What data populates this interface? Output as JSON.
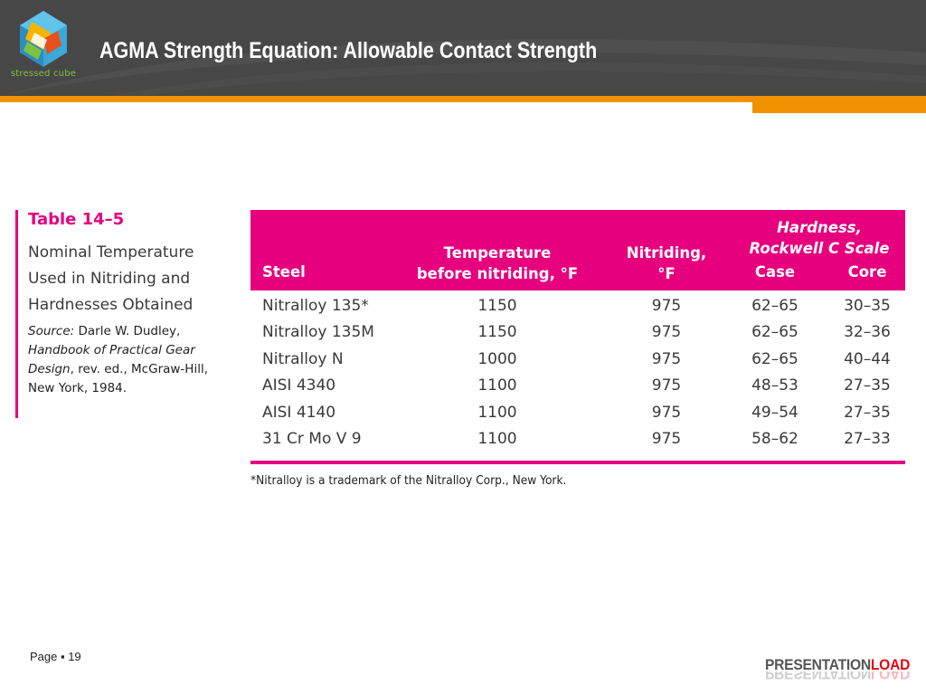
{
  "header": {
    "title": "AGMA Strength Equation: Allowable Contact Strength",
    "logo_text": "stressed cube"
  },
  "caption": {
    "table_label": "Table 14–5",
    "description": "Nominal Temperature Used in Nitriding and Hardnesses Obtained",
    "source_prefix": "Source:",
    "source_author": " Darle W. Dudley,",
    "source_book": "Handbook of Practical Gear Design",
    "source_rest": ", rev. ed., McGraw-Hill, New York, 1984."
  },
  "table": {
    "headers": {
      "steel": "Steel",
      "temp_line1": "Temperature",
      "temp_line2": "before nitriding, °F",
      "nit_line1": "Nitriding,",
      "nit_line2": "°F",
      "hard_line1": "Hardness,",
      "hard_line2": "Rockwell C Scale",
      "case": "Case",
      "core": "Core"
    },
    "rows": [
      {
        "steel": "Nitralloy 135*",
        "temp": "1150",
        "nit": "975",
        "case": "62–65",
        "core": "30–35"
      },
      {
        "steel": "Nitralloy 135M",
        "temp": "1150",
        "nit": "975",
        "case": "62–65",
        "core": "32–36"
      },
      {
        "steel": "Nitralloy N",
        "temp": "1000",
        "nit": "975",
        "case": "62–65",
        "core": "40–44"
      },
      {
        "steel": "AISI 4340",
        "temp": "1100",
        "nit": "975",
        "case": "48–53",
        "core": "27–35"
      },
      {
        "steel": "AISI 4140",
        "temp": "1100",
        "nit": "975",
        "case": "49–54",
        "core": "27–35"
      },
      {
        "steel": "31 Cr Mo V 9",
        "temp": "1100",
        "nit": "975",
        "case": "58–62",
        "core": "27–33"
      }
    ],
    "footnote": "*Nitralloy is a trademark of the Nitralloy Corp., New York."
  },
  "footer": {
    "page_label": "Page ▪ 19",
    "brand_part1": "PRESENTATION",
    "brand_part2": "LOAD"
  },
  "colors": {
    "accent_magenta": "#e6007e",
    "header_gray": "#474747",
    "orange": "#f39200",
    "brand_red": "#e30613"
  }
}
